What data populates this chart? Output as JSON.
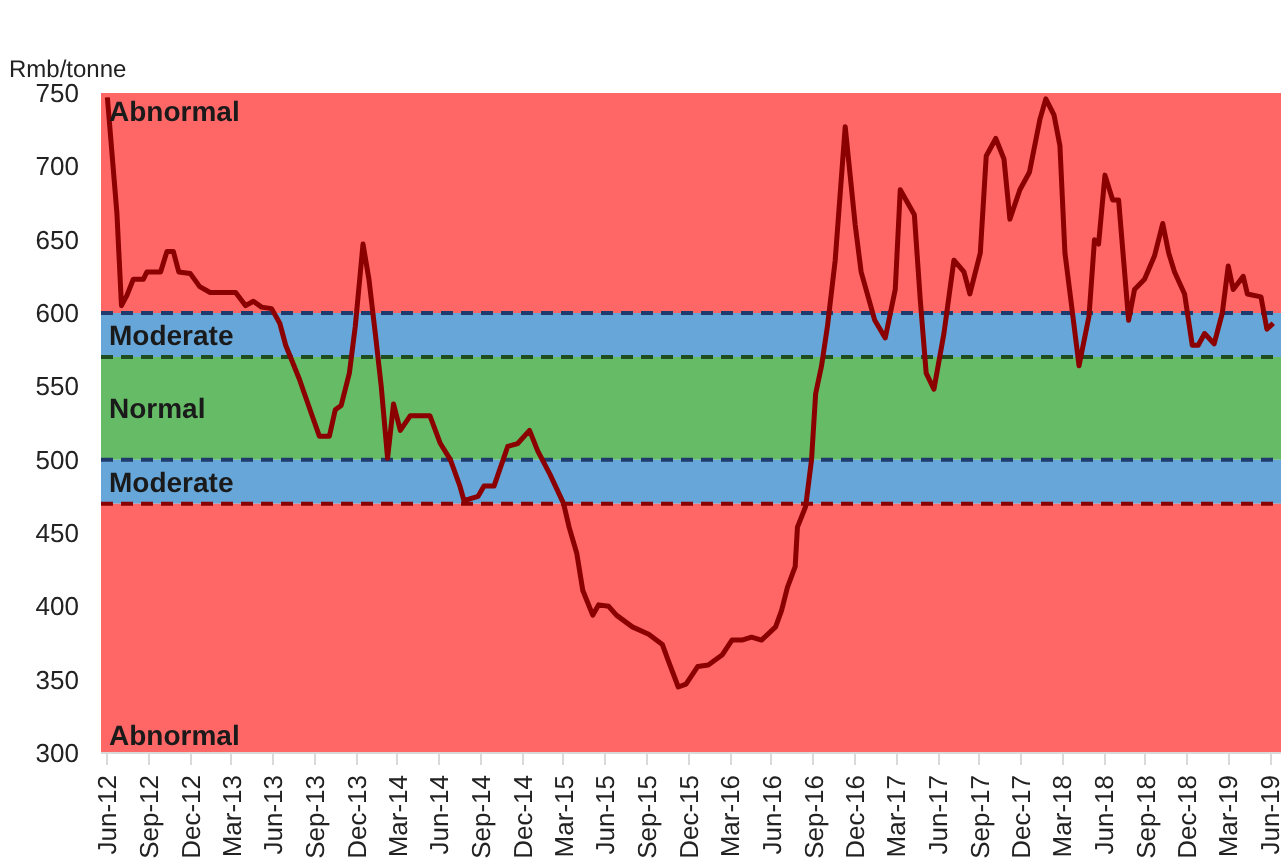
{
  "chart_data": {
    "type": "line",
    "ylabel": "Rmb/tonne",
    "x": [
      "2012-06-01",
      "2012-06-22",
      "2012-07-02",
      "2012-07-14",
      "2012-07-28",
      "2012-08-19",
      "2012-08-27",
      "2012-09-26",
      "2012-10-10",
      "2012-10-24",
      "2012-11-05",
      "2012-11-30",
      "2012-12-21",
      "2013-01-13",
      "2013-03-10",
      "2013-04-01",
      "2013-04-18",
      "2013-05-06",
      "2013-05-28",
      "2013-06-15",
      "2013-06-28",
      "2013-07-28",
      "2013-08-24",
      "2013-09-10",
      "2013-10-02",
      "2013-10-15",
      "2013-10-28",
      "2013-11-15",
      "2013-11-28",
      "2013-12-15",
      "2013-12-28",
      "2014-01-11",
      "2014-01-24",
      "2014-02-07",
      "2014-02-20",
      "2014-03-07",
      "2014-03-29",
      "2014-05-11",
      "2014-06-03",
      "2014-06-25",
      "2014-07-16",
      "2014-07-25",
      "2014-08-25",
      "2014-09-07",
      "2014-09-29",
      "2014-10-29",
      "2014-11-20",
      "2014-12-16",
      "2015-01-03",
      "2015-01-30",
      "2015-03-01",
      "2015-03-13",
      "2015-03-30",
      "2015-04-12",
      "2015-05-04",
      "2015-05-17",
      "2015-06-08",
      "2015-06-25",
      "2015-07-30",
      "2015-09-04",
      "2015-10-04",
      "2015-10-17",
      "2015-11-08",
      "2015-11-25",
      "2015-12-21",
      "2016-01-13",
      "2016-02-13",
      "2016-03-05",
      "2016-03-27",
      "2016-04-17",
      "2016-05-09",
      "2016-06-09",
      "2016-06-22",
      "2016-07-05",
      "2016-07-22",
      "2016-07-27",
      "2016-08-14",
      "2016-08-27",
      "2016-09-05",
      "2016-09-18",
      "2016-10-01",
      "2016-10-18",
      "2016-11-09",
      "2016-12-01",
      "2016-12-14",
      "2017-01-13",
      "2017-02-05",
      "2017-02-27",
      "2017-03-10",
      "2017-04-10",
      "2017-04-23",
      "2017-05-06",
      "2017-05-23",
      "2017-06-14",
      "2017-07-06",
      "2017-07-28",
      "2017-08-10",
      "2017-09-02",
      "2017-09-15",
      "2017-10-06",
      "2017-10-24",
      "2017-11-06",
      "2017-11-28",
      "2017-12-19",
      "2018-01-11",
      "2018-01-24",
      "2018-02-11",
      "2018-02-24",
      "2018-03-07",
      "2018-03-20",
      "2018-04-07",
      "2018-04-29",
      "2018-05-11",
      "2018-05-20",
      "2018-06-03",
      "2018-06-20",
      "2018-07-03",
      "2018-07-25",
      "2018-08-07",
      "2018-08-29",
      "2018-09-20",
      "2018-10-08",
      "2018-10-21",
      "2018-11-03",
      "2018-11-25",
      "2018-12-12",
      "2018-12-25",
      "2019-01-08",
      "2019-01-29",
      "2019-02-16",
      "2019-03-01",
      "2019-03-12",
      "2019-04-03",
      "2019-04-12",
      "2019-05-12",
      "2019-05-25",
      "2019-06-08"
    ],
    "series": [
      {
        "color": "#8b0000",
        "values": [
          747,
          668,
          605,
          612,
          623,
          623,
          628,
          628,
          642,
          642,
          628,
          627,
          618,
          614,
          614,
          605,
          608,
          604,
          603,
          593,
          578,
          555,
          531,
          516,
          516,
          534,
          537,
          559,
          591,
          647,
          623,
          586,
          550,
          501,
          538,
          520,
          530,
          530,
          511,
          500,
          482,
          472,
          475,
          482,
          482,
          509,
          511,
          520,
          506,
          490,
          470,
          454,
          436,
          411,
          394,
          401,
          400,
          394,
          386,
          381,
          374,
          363,
          345,
          347,
          359,
          360,
          367,
          377,
          377,
          379,
          377,
          386,
          397,
          413,
          427,
          454,
          468,
          500,
          545,
          564,
          591,
          636,
          727,
          660,
          628,
          595,
          583,
          616,
          684,
          667,
          609,
          559,
          548,
          586,
          636,
          628,
          613,
          641,
          707,
          719,
          705,
          664,
          684,
          696,
          732,
          746,
          735,
          714,
          641,
          609,
          564,
          598,
          650,
          647,
          694,
          677,
          677,
          595,
          616,
          623,
          639,
          661,
          641,
          628,
          613,
          578,
          578,
          586,
          579,
          600,
          632,
          616,
          625,
          613,
          611,
          589,
          593
        ]
      }
    ],
    "xlim": [
      "2012-05-18",
      "2019-06-25"
    ],
    "ylim": [
      300,
      750
    ],
    "yticks": [
      300,
      350,
      400,
      450,
      500,
      550,
      600,
      650,
      700,
      750
    ],
    "xticks": [
      {
        "value": "2012-06-01",
        "label": "Jun-12"
      },
      {
        "value": "2012-09-01",
        "label": "Sep-12"
      },
      {
        "value": "2012-12-01",
        "label": "Dec-12"
      },
      {
        "value": "2013-03-01",
        "label": "Mar-13"
      },
      {
        "value": "2013-06-01",
        "label": "Jun-13"
      },
      {
        "value": "2013-09-01",
        "label": "Sep-13"
      },
      {
        "value": "2013-12-01",
        "label": "Dec-13"
      },
      {
        "value": "2014-03-01",
        "label": "Mar-14"
      },
      {
        "value": "2014-06-01",
        "label": "Jun-14"
      },
      {
        "value": "2014-09-01",
        "label": "Sep-14"
      },
      {
        "value": "2014-12-01",
        "label": "Dec-14"
      },
      {
        "value": "2015-03-01",
        "label": "Mar-15"
      },
      {
        "value": "2015-06-01",
        "label": "Jun-15"
      },
      {
        "value": "2015-09-01",
        "label": "Sep-15"
      },
      {
        "value": "2015-12-01",
        "label": "Dec-15"
      },
      {
        "value": "2016-03-01",
        "label": "Mar-16"
      },
      {
        "value": "2016-06-01",
        "label": "Jun-16"
      },
      {
        "value": "2016-09-01",
        "label": "Sep-16"
      },
      {
        "value": "2016-12-01",
        "label": "Dec-16"
      },
      {
        "value": "2017-03-01",
        "label": "Mar-17"
      },
      {
        "value": "2017-06-01",
        "label": "Jun-17"
      },
      {
        "value": "2017-09-01",
        "label": "Sep-17"
      },
      {
        "value": "2017-12-01",
        "label": "Dec-17"
      },
      {
        "value": "2018-03-01",
        "label": "Mar-18"
      },
      {
        "value": "2018-06-01",
        "label": "Jun-18"
      },
      {
        "value": "2018-09-01",
        "label": "Sep-18"
      },
      {
        "value": "2018-12-01",
        "label": "Dec-18"
      },
      {
        "value": "2019-03-01",
        "label": "Mar-19"
      },
      {
        "value": "2019-06-01",
        "label": "Jun-19"
      }
    ],
    "bands": [
      {
        "axis": "y",
        "from": 600,
        "to": 750,
        "label": "Abnormal",
        "color": "#ff6666"
      },
      {
        "axis": "y",
        "from": 570,
        "to": 600,
        "label": "Moderate",
        "color": "#66a6d8"
      },
      {
        "axis": "y",
        "from": 500,
        "to": 570,
        "label": "Normal",
        "color": "#66bb66"
      },
      {
        "axis": "y",
        "from": 470,
        "to": 500,
        "label": "Moderate",
        "color": "#66a6d8"
      },
      {
        "axis": "y",
        "from": 300,
        "to": 470,
        "label": "Abnormal",
        "color": "#ff6666"
      }
    ],
    "ref_lines": [
      {
        "axis": "y",
        "value": 600,
        "color": "#1f3b6e",
        "line_style": "dashed"
      },
      {
        "axis": "y",
        "value": 570,
        "color": "#1f4d1f",
        "line_style": "dashed"
      },
      {
        "axis": "y",
        "value": 500,
        "color": "#1f3b6e",
        "line_style": "dashed"
      },
      {
        "axis": "y",
        "value": 470,
        "color": "#8b0000",
        "line_style": "dashed"
      }
    ],
    "grid": false
  }
}
